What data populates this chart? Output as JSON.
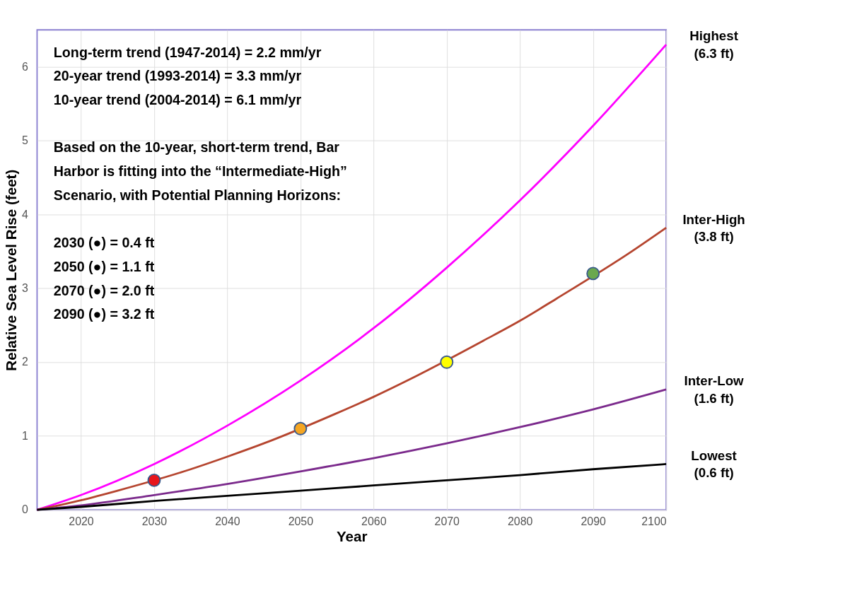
{
  "chart_data": {
    "type": "line",
    "xlabel": "Year",
    "ylabel": "Relative Sea Level Rise (feet)",
    "x": [
      2014,
      2020,
      2030,
      2040,
      2050,
      2060,
      2070,
      2080,
      2090,
      2100
    ],
    "series": [
      {
        "name": "Highest (6.3 ft)",
        "color": "#ff00ff",
        "values": [
          0,
          0.2,
          0.62,
          1.14,
          1.75,
          2.46,
          3.28,
          4.19,
          5.2,
          6.3
        ]
      },
      {
        "name": "Inter-High (3.8 ft)",
        "color": "#b5452f",
        "x": [
          2014,
          2020,
          2025,
          2035,
          2040,
          2045,
          2055,
          2060,
          2065,
          2075,
          2080,
          2085,
          2095,
          2100
        ],
        "values": [
          0,
          0.13,
          0.26,
          0.55,
          0.72,
          0.9,
          1.31,
          1.53,
          1.77,
          2.29,
          2.56,
          2.86,
          3.48,
          3.82
        ]
      },
      {
        "name": "Inter-Low (1.6 ft)",
        "color": "#7b2a8c",
        "values": [
          0,
          0.06,
          0.2,
          0.35,
          0.52,
          0.7,
          0.9,
          1.12,
          1.36,
          1.63
        ]
      },
      {
        "name": "Lowest (0.6 ft)",
        "color": "#000000",
        "values": [
          0,
          0.04,
          0.12,
          0.19,
          0.26,
          0.33,
          0.4,
          0.47,
          0.55,
          0.62
        ]
      },
      {
        "type": "scatter",
        "marker": "circle",
        "x": [
          2030,
          2050,
          2070,
          2090
        ],
        "values": [
          0.4,
          1.1,
          2.0,
          3.2
        ],
        "colors": [
          "#e8151b",
          "#f5a623",
          "#ffff00",
          "#6aa84f"
        ]
      }
    ],
    "xlim": [
      2014,
      2100
    ],
    "xticks": [
      2020,
      2030,
      2040,
      2050,
      2060,
      2070,
      2080,
      2090,
      2100
    ],
    "ylim": [
      0,
      6.5
    ],
    "yticks": [
      0,
      1,
      2,
      3,
      4,
      5,
      6
    ],
    "grid": true,
    "line_style": "solid",
    "annotations": [
      "Long-term trend (1947-2014) = 2.2 mm/yr",
      "20-year trend (1993-2014) = 3.3 mm/yr",
      "10-year trend (2004-2014) = 6.1 mm/yr",
      "Based on the 10-year, short-term trend, Bar",
      "Harbor is fitting into the “Intermediate-High”",
      "Scenario, with Potential Planning Horizons:",
      "2030 (●) = 0.4 ft",
      "2050 (●) = 1.1 ft",
      "2070 (●) = 2.0 ft",
      "2090 (●) = 3.2 ft"
    ]
  }
}
